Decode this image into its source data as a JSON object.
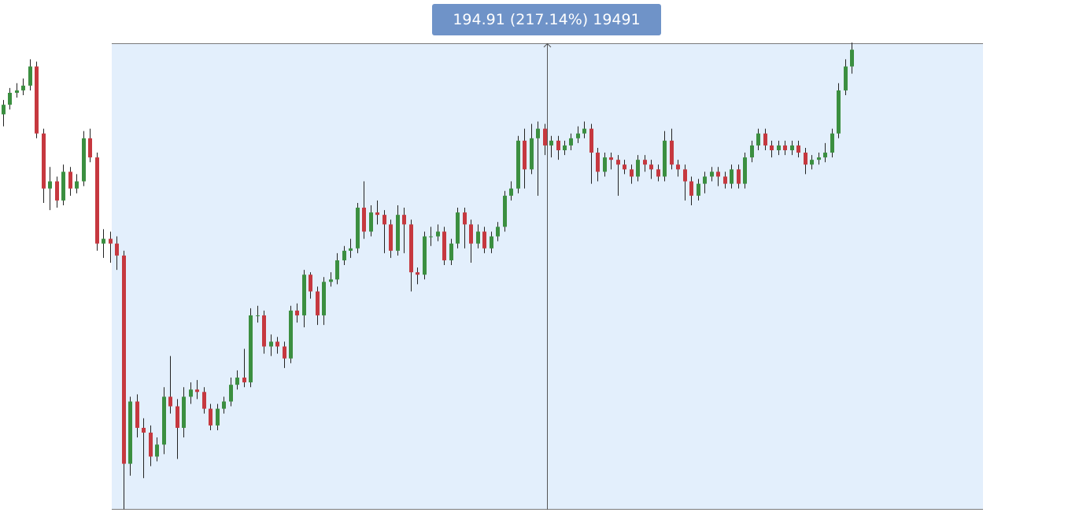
{
  "chart_data": {
    "type": "candlestick",
    "measure_label": "194.91 (217.14%) 19491",
    "ylim": [
      89.8,
      284.7
    ],
    "up_color": "#3b8f40",
    "down_color": "#c6383f",
    "open": [
      255,
      259,
      264,
      265,
      267,
      275,
      247,
      224,
      227,
      219,
      231,
      224,
      227,
      245,
      237,
      201,
      203,
      201,
      196,
      109,
      135,
      124,
      122,
      112,
      117,
      137,
      133,
      124,
      137,
      140,
      139,
      132,
      125,
      132,
      135,
      142,
      145,
      143,
      171,
      171,
      158,
      160,
      158,
      153,
      173,
      171,
      188,
      181,
      171,
      185,
      186,
      194,
      198,
      199,
      216,
      206,
      214,
      213,
      209,
      198,
      213,
      209,
      189,
      188,
      204,
      204,
      206,
      194,
      201,
      214,
      209,
      201,
      206,
      199,
      204,
      208,
      221,
      224,
      244,
      232,
      245,
      249,
      242,
      244,
      240,
      242,
      245,
      247,
      249,
      239,
      231,
      237,
      236,
      234,
      232,
      229,
      236,
      234,
      232,
      229,
      244,
      234,
      232,
      227,
      221,
      226,
      229,
      231,
      229,
      226,
      232,
      226,
      237,
      242,
      247,
      242,
      240,
      242,
      240,
      242,
      239,
      234,
      236,
      237,
      239,
      247,
      265,
      275
    ],
    "high": [
      261,
      266,
      268,
      270,
      278,
      277,
      249,
      233,
      229,
      234,
      233,
      230,
      248,
      249,
      239,
      207,
      206,
      204,
      198,
      137,
      138,
      128,
      125,
      120,
      141,
      154,
      136,
      141,
      143,
      144,
      141,
      134,
      134,
      137,
      145,
      148,
      157,
      174,
      175,
      173,
      163,
      162,
      160,
      175,
      176,
      190,
      189,
      183,
      187,
      189,
      197,
      200,
      203,
      218,
      227,
      217,
      219,
      215,
      211,
      217,
      216,
      211,
      191,
      206,
      208,
      209,
      208,
      203,
      216,
      216,
      211,
      209,
      208,
      206,
      210,
      223,
      227,
      246,
      249,
      251,
      252,
      251,
      246,
      246,
      244,
      247,
      250,
      252,
      251,
      241,
      239,
      239,
      238,
      236,
      234,
      238,
      238,
      236,
      234,
      248,
      249,
      236,
      234,
      229,
      228,
      231,
      233,
      233,
      231,
      234,
      234,
      239,
      244,
      249,
      249,
      244,
      244,
      244,
      244,
      244,
      241,
      238,
      239,
      243,
      249,
      268,
      278,
      285
    ],
    "low": [
      250,
      257,
      262,
      263,
      265,
      245,
      218,
      215,
      216,
      217,
      221,
      222,
      225,
      235,
      198,
      195,
      193,
      190,
      90,
      104,
      120,
      103,
      108,
      110,
      113,
      130,
      111,
      120,
      134,
      136,
      130,
      123,
      123,
      130,
      133,
      140,
      141,
      141,
      168,
      155,
      154,
      155,
      149,
      151,
      168,
      166,
      178,
      167,
      167,
      183,
      184,
      192,
      195,
      197,
      203,
      204,
      209,
      197,
      195,
      196,
      197,
      181,
      184,
      186,
      200,
      202,
      192,
      192,
      199,
      199,
      193,
      199,
      197,
      197,
      202,
      206,
      219,
      222,
      224,
      230,
      221,
      238,
      237,
      236,
      238,
      240,
      243,
      245,
      226,
      227,
      229,
      232,
      221,
      230,
      226,
      227,
      231,
      228,
      227,
      227,
      232,
      229,
      219,
      217,
      219,
      222,
      227,
      225,
      224,
      224,
      224,
      224,
      235,
      240,
      240,
      237,
      238,
      238,
      238,
      237,
      230,
      232,
      234,
      235,
      237,
      245,
      263,
      272
    ],
    "close": [
      259,
      264,
      265,
      267,
      275,
      247,
      224,
      227,
      219,
      231,
      224,
      227,
      245,
      237,
      201,
      203,
      201,
      196,
      109,
      135,
      124,
      122,
      112,
      117,
      137,
      133,
      124,
      137,
      140,
      139,
      132,
      125,
      132,
      135,
      142,
      145,
      143,
      171,
      171,
      158,
      160,
      158,
      153,
      173,
      171,
      188,
      181,
      171,
      185,
      186,
      194,
      198,
      199,
      216,
      206,
      214,
      213,
      209,
      198,
      213,
      209,
      189,
      188,
      204,
      204,
      206,
      194,
      201,
      214,
      209,
      201,
      206,
      199,
      204,
      208,
      221,
      224,
      244,
      232,
      245,
      249,
      242,
      244,
      240,
      242,
      245,
      247,
      249,
      239,
      231,
      237,
      236,
      234,
      232,
      229,
      236,
      234,
      232,
      229,
      244,
      234,
      232,
      227,
      221,
      226,
      229,
      231,
      229,
      226,
      232,
      226,
      237,
      242,
      247,
      242,
      240,
      242,
      240,
      242,
      239,
      234,
      236,
      237,
      239,
      247,
      265,
      275,
      282
    ]
  }
}
